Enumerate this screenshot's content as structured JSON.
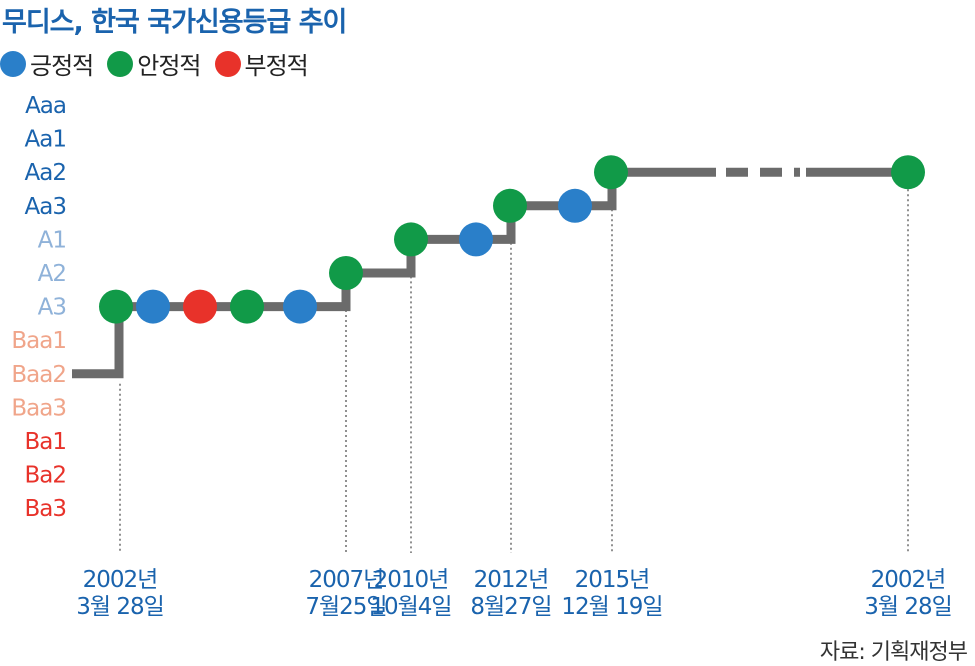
{
  "title": "무디스, 한국 국가신용등급 추이",
  "legend": [
    {
      "label": "긍정적",
      "color": "#2a7fc9"
    },
    {
      "label": "안정적",
      "color": "#119a48"
    },
    {
      "label": "부정적",
      "color": "#e8322a"
    }
  ],
  "source": "자료: 기획재정부",
  "chart_data": {
    "type": "line",
    "title": "무디스, 한국 국가신용등급 추이",
    "ratings": [
      "Aaa",
      "Aa1",
      "Aa2",
      "Aa3",
      "A1",
      "A2",
      "A3",
      "Baa1",
      "Baa2",
      "Baa3",
      "Ba1",
      "Ba2",
      "Ba3"
    ],
    "rating_colors": [
      "#1a63ad",
      "#1a63ad",
      "#1a63ad",
      "#1a63ad",
      "#8fb2d9",
      "#8fb2d9",
      "#8fb2d9",
      "#f0a58a",
      "#f0a58a",
      "#f0a58a",
      "#e8322a",
      "#e8322a",
      "#e8322a"
    ],
    "line_color": "#6b6b6b",
    "date_labels": [
      {
        "line1": "2002년",
        "line2": "3월 28일"
      },
      {
        "line1": "2007년",
        "line2": "7월25일"
      },
      {
        "line1": "2010년",
        "line2": "10월4일"
      },
      {
        "line1": "2012년",
        "line2": "8월27일"
      },
      {
        "line1": "2015년",
        "line2": "12월 19일"
      },
      {
        "line1": "2002년",
        "line2": "3월 28일"
      }
    ],
    "start_rating": "Baa2",
    "events": [
      {
        "rating": "A3",
        "outlook": "안정적",
        "date_label": 0
      },
      {
        "rating": "A3",
        "outlook": "긍정적"
      },
      {
        "rating": "A3",
        "outlook": "부정적"
      },
      {
        "rating": "A3",
        "outlook": "안정적"
      },
      {
        "rating": "A3",
        "outlook": "긍정적"
      },
      {
        "rating": "A2",
        "outlook": "안정적",
        "date_label": 1
      },
      {
        "rating": "A1",
        "outlook": "안정적",
        "date_label": 2
      },
      {
        "rating": "A1",
        "outlook": "긍정적"
      },
      {
        "rating": "Aa3",
        "outlook": "안정적",
        "date_label": 3
      },
      {
        "rating": "Aa3",
        "outlook": "긍정적"
      },
      {
        "rating": "Aa2",
        "outlook": "안정적",
        "date_label": 4
      },
      {
        "rating": "Aa2",
        "outlook": "안정적",
        "date_label": 5
      }
    ],
    "grid": false
  }
}
